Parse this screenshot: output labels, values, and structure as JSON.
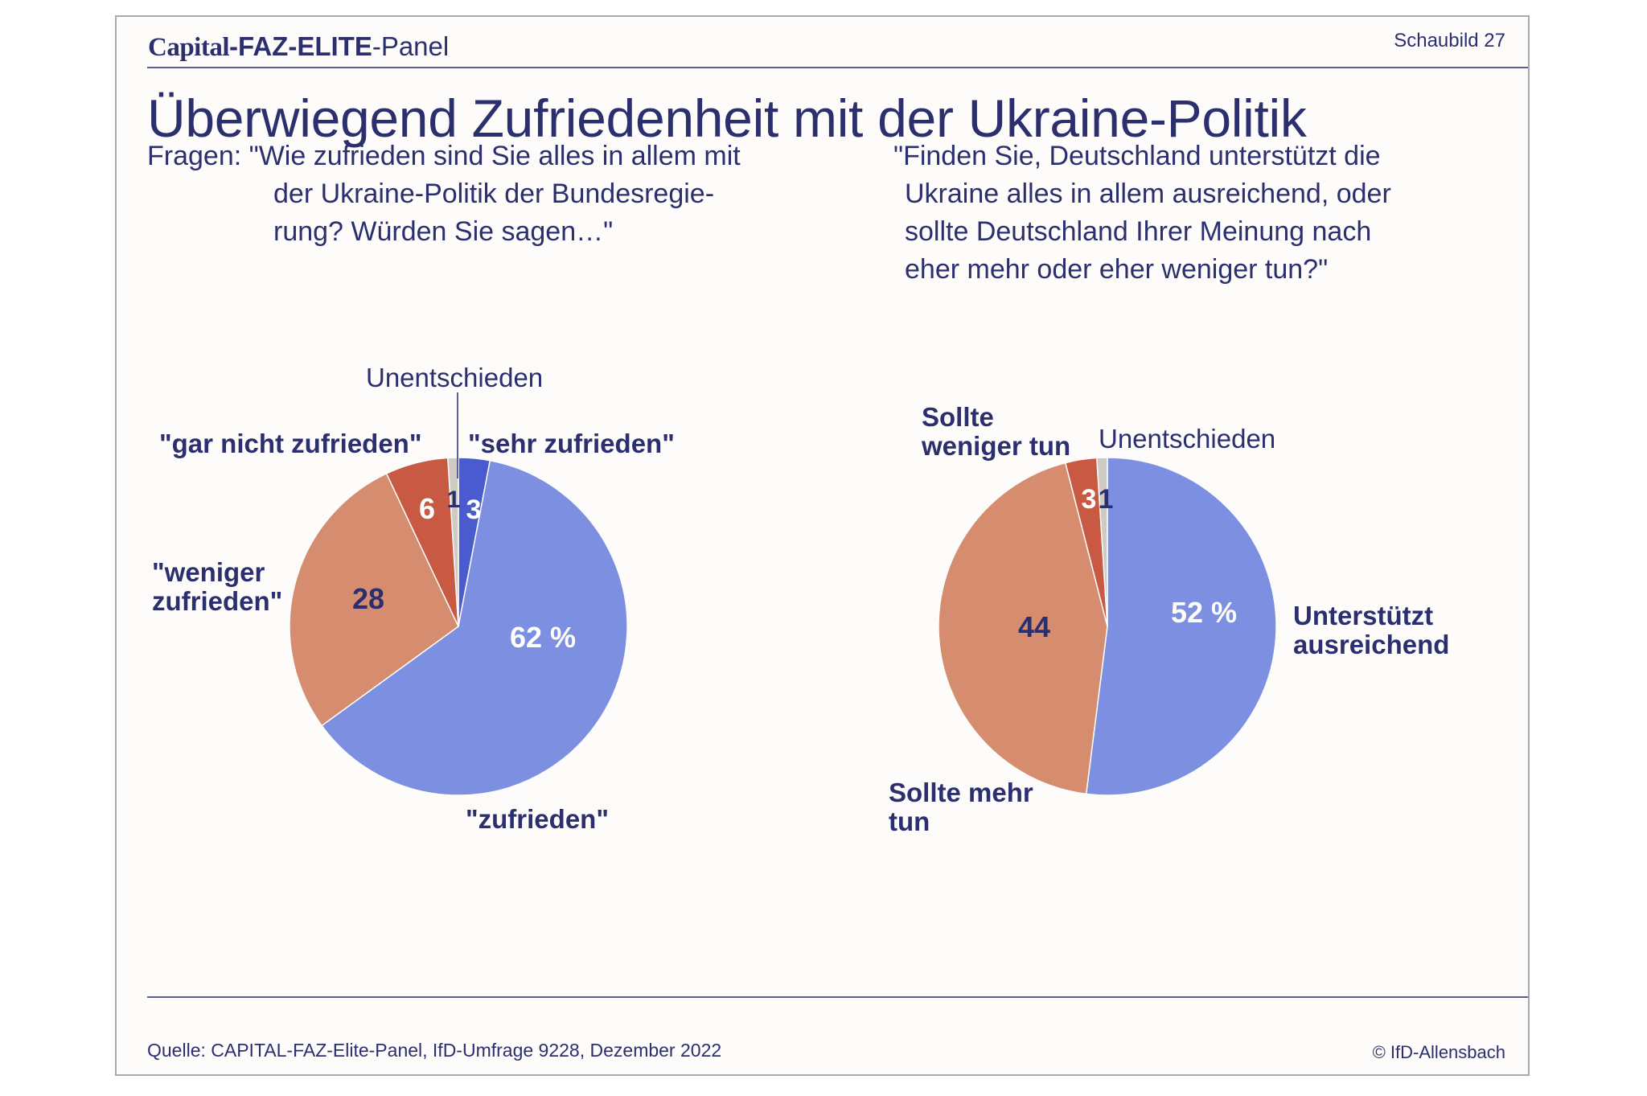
{
  "header": {
    "brand_capital": "Capital",
    "brand_faz": "-FAZ-ELITE",
    "brand_panel": "-Panel",
    "figure_number": "Schaubild 27"
  },
  "title": "Überwiegend Zufriedenheit mit der Ukraine-Politik",
  "questions": {
    "left_line1": "Fragen: \"Wie zufrieden sind Sie alles in allem mit",
    "left_line2": "der Ukraine-Politik der Bundesregie-",
    "left_line3": "rung? Würden Sie sagen…\"",
    "right_line1": "\"Finden Sie, Deutschland unterstützt die",
    "right_line2": "Ukraine alles in allem ausreichend, oder",
    "right_line3": "sollte Deutschland Ihrer Meinung nach",
    "right_line4": "eher mehr oder eher weniger tun?\""
  },
  "chart_data": [
    {
      "type": "pie",
      "slices": [
        {
          "label": "\"sehr zufrieden\"",
          "value": 3,
          "value_label": "3",
          "color": "#4a5bd0"
        },
        {
          "label": "\"zufrieden\"",
          "value": 62,
          "value_label": "62 %",
          "color": "#7d8fe0"
        },
        {
          "label": "\"weniger zufrieden\"",
          "value": 28,
          "value_label": "28",
          "color": "#d58c6f"
        },
        {
          "label": "\"gar nicht zufrieden\"",
          "value": 6,
          "value_label": "6",
          "color": "#c85a44"
        },
        {
          "label": "Unentschieden",
          "value": 1,
          "value_label": "1",
          "color": "#cfcac2"
        }
      ]
    },
    {
      "type": "pie",
      "slices": [
        {
          "label": "Unterstützt ausreichend",
          "value": 52,
          "value_label": "52 %",
          "color": "#7d8fe0"
        },
        {
          "label": "Sollte mehr tun",
          "value": 44,
          "value_label": "44",
          "color": "#d58c6f"
        },
        {
          "label": "Sollte weniger tun",
          "value": 3,
          "value_label": "3",
          "color": "#c85a44"
        },
        {
          "label": "Unentschieden",
          "value": 1,
          "value_label": "1",
          "color": "#cfcac2"
        }
      ]
    }
  ],
  "labels": {
    "left": {
      "unentschieden": "Unentschieden",
      "gar_nicht": "\"gar nicht zufrieden\"",
      "sehr": "\"sehr zufrieden\"",
      "weniger_1": "\"weniger",
      "weniger_2": "zufrieden\"",
      "zufrieden": "\"zufrieden\""
    },
    "right": {
      "weniger_1": "Sollte",
      "weniger_2": "weniger tun",
      "unentschieden": "Unentschieden",
      "ausreichend_1": "Unterstützt",
      "ausreichend_2": "ausreichend",
      "mehr_1": "Sollte mehr",
      "mehr_2": "tun"
    }
  },
  "footer": {
    "source": "Quelle: CAPITAL-FAZ-Elite-Panel, IfD-Umfrage 9228, Dezember 2022",
    "copyright": "© IfD-Allensbach"
  },
  "colors": {
    "text": "#2b2f6e",
    "value_on_light": "#ffffff",
    "value_on_salmon": "#2b2f6e"
  }
}
